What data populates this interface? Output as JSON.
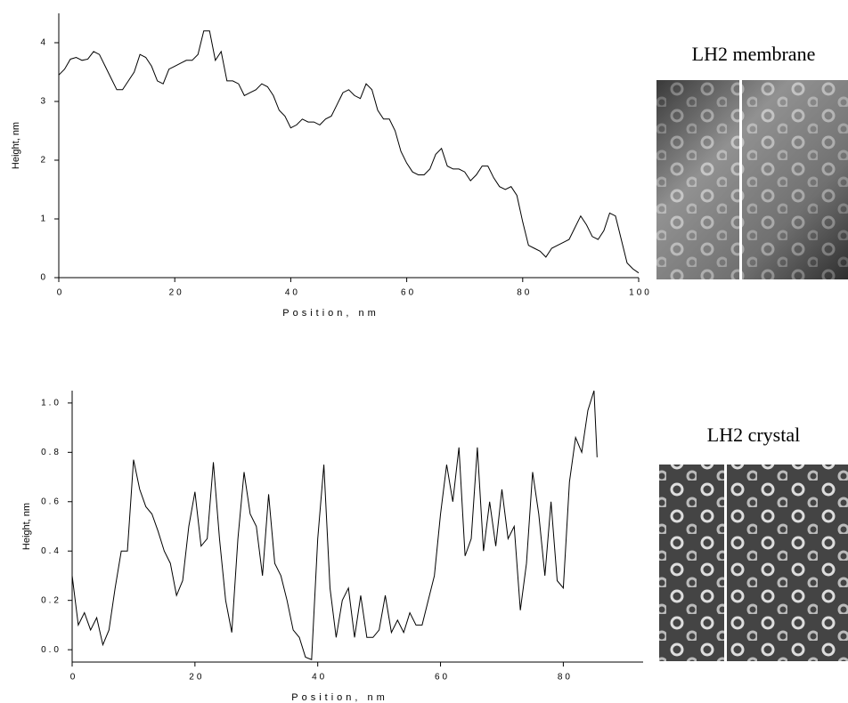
{
  "chart_data": [
    {
      "type": "line",
      "xlabel": "Position, nm",
      "ylabel": "Height, nm",
      "xlim": [
        0,
        100
      ],
      "ylim": [
        0,
        4.5
      ],
      "xticks": [
        0,
        20,
        40,
        60,
        80,
        100
      ],
      "yticks": [
        0,
        1,
        2,
        3,
        4
      ],
      "color": "#000000",
      "x": [
        0,
        1,
        2,
        3,
        4,
        5,
        6,
        7,
        8,
        9,
        10,
        11,
        12,
        13,
        14,
        15,
        16,
        17,
        18,
        19,
        20,
        21,
        22,
        23,
        24,
        25,
        26,
        27,
        28,
        29,
        30,
        31,
        32,
        33,
        34,
        35,
        36,
        37,
        38,
        39,
        40,
        41,
        42,
        43,
        44,
        45,
        46,
        47,
        48,
        49,
        50,
        51,
        52,
        53,
        54,
        55,
        56,
        57,
        58,
        59,
        60,
        61,
        62,
        63,
        64,
        65,
        66,
        67,
        68,
        69,
        70,
        71,
        72,
        73,
        74,
        75,
        76,
        77,
        78,
        79,
        80,
        81,
        82,
        83,
        84,
        85,
        86,
        87,
        88,
        89,
        90,
        91,
        92,
        93,
        94,
        95,
        96,
        97,
        98,
        99,
        100
      ],
      "values": [
        3.45,
        3.55,
        3.72,
        3.75,
        3.7,
        3.72,
        3.85,
        3.8,
        3.6,
        3.4,
        3.2,
        3.2,
        3.35,
        3.5,
        3.8,
        3.75,
        3.6,
        3.35,
        3.3,
        3.55,
        3.6,
        3.65,
        3.7,
        3.7,
        3.8,
        4.2,
        4.2,
        3.7,
        3.85,
        3.35,
        3.35,
        3.3,
        3.1,
        3.15,
        3.2,
        3.3,
        3.25,
        3.1,
        2.85,
        2.75,
        2.55,
        2.6,
        2.7,
        2.65,
        2.65,
        2.6,
        2.7,
        2.75,
        2.95,
        3.15,
        3.2,
        3.1,
        3.05,
        3.3,
        3.2,
        2.85,
        2.7,
        2.7,
        2.5,
        2.15,
        1.95,
        1.8,
        1.75,
        1.75,
        1.85,
        2.1,
        2.2,
        1.9,
        1.85,
        1.85,
        1.8,
        1.65,
        1.75,
        1.9,
        1.9,
        1.7,
        1.55,
        1.5,
        1.55,
        1.4,
        0.95,
        0.55,
        0.5,
        0.45,
        0.35,
        0.5,
        0.55,
        0.6,
        0.65,
        0.85,
        1.05,
        0.9,
        0.7,
        0.65,
        0.8,
        1.1,
        1.05,
        0.65,
        0.25,
        0.15,
        0.08
      ]
    },
    {
      "type": "line",
      "xlabel": "Position, nm",
      "ylabel": "Height, nm",
      "xlim": [
        0,
        93
      ],
      "ylim": [
        -0.05,
        1.05
      ],
      "xticks": [
        0,
        20,
        40,
        60,
        80
      ],
      "yticks": [
        {
          "value": 0,
          "label": "0.0"
        },
        0.2,
        0.4,
        0.6,
        0.8,
        {
          "value": 1,
          "label": "1.0"
        }
      ],
      "color": "#000000",
      "x": [
        0,
        1,
        2,
        3,
        4,
        5,
        6,
        7,
        8,
        9,
        10,
        11,
        12,
        13,
        14,
        15,
        16,
        17,
        18,
        19,
        20,
        21,
        22,
        23,
        24,
        25,
        26,
        27,
        28,
        29,
        30,
        31,
        32,
        33,
        34,
        35,
        36,
        37,
        38,
        39,
        40,
        41,
        42,
        43,
        44,
        45,
        46,
        47,
        48,
        49,
        50,
        51,
        52,
        53,
        54,
        55,
        56,
        57,
        58,
        59,
        60,
        61,
        62,
        63,
        64,
        65,
        66,
        67,
        68,
        69,
        70,
        71,
        72,
        73,
        74,
        75,
        76,
        77,
        78,
        79,
        80,
        81,
        82,
        83,
        84,
        85,
        85.5
      ],
      "values": [
        0.3,
        0.1,
        0.15,
        0.08,
        0.13,
        0.02,
        0.08,
        0.25,
        0.4,
        0.4,
        0.77,
        0.65,
        0.58,
        0.55,
        0.48,
        0.4,
        0.35,
        0.22,
        0.28,
        0.5,
        0.64,
        0.42,
        0.45,
        0.76,
        0.45,
        0.2,
        0.07,
        0.45,
        0.72,
        0.55,
        0.5,
        0.3,
        0.63,
        0.35,
        0.3,
        0.2,
        0.08,
        0.05,
        -0.03,
        -0.04,
        0.45,
        0.75,
        0.25,
        0.05,
        0.2,
        0.25,
        0.05,
        0.22,
        0.05,
        0.05,
        0.08,
        0.22,
        0.07,
        0.12,
        0.07,
        0.15,
        0.1,
        0.1,
        0.2,
        0.3,
        0.55,
        0.75,
        0.6,
        0.82,
        0.38,
        0.45,
        0.82,
        0.4,
        0.6,
        0.42,
        0.65,
        0.45,
        0.5,
        0.16,
        0.35,
        0.72,
        0.55,
        0.3,
        0.6,
        0.28,
        0.25,
        0.68,
        0.86,
        0.8,
        0.97,
        1.05,
        0.78
      ]
    }
  ],
  "images": [
    {
      "label": "LH2 membrane"
    },
    {
      "label": "LH2 crystal"
    }
  ]
}
